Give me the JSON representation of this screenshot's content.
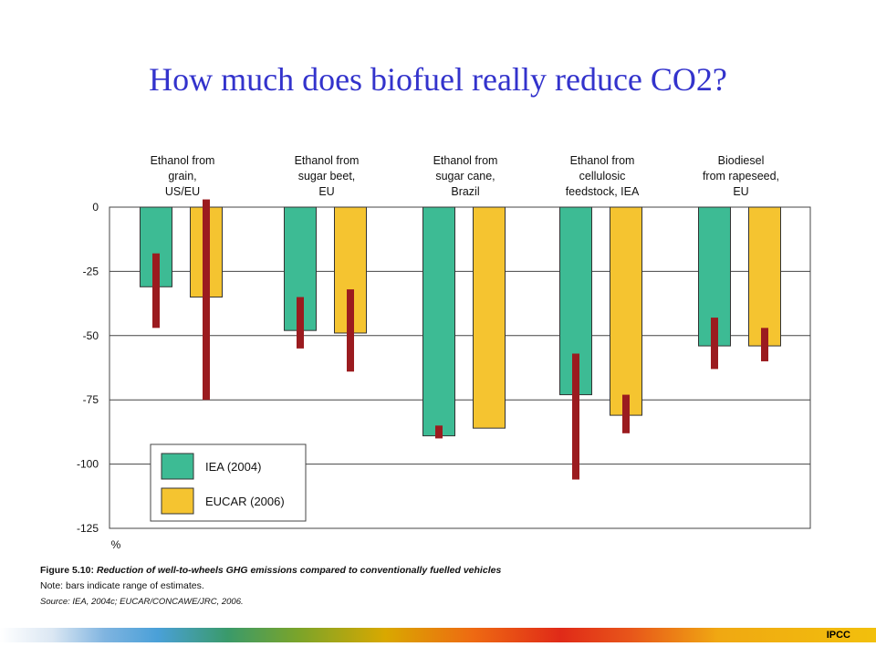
{
  "title": "How much does biofuel really reduce CO2?",
  "chart_data": {
    "type": "bar",
    "categories": [
      "Ethanol from grain, US/EU",
      "Ethanol from sugar beet, EU",
      "Ethanol from sugar cane, Brazil",
      "Ethanol from cellulosic feedstock, IEA",
      "Biodiesel from rapeseed, EU"
    ],
    "category_lines": [
      [
        "Ethanol from",
        "grain,",
        "US/EU"
      ],
      [
        "Ethanol from",
        "sugar beet,",
        "EU"
      ],
      [
        "Ethanol from",
        "sugar cane,",
        "Brazil"
      ],
      [
        "Ethanol from",
        "cellulosic",
        "feedstock, IEA"
      ],
      [
        "Biodiesel",
        "from rapeseed,",
        "EU"
      ]
    ],
    "series": [
      {
        "name": "IEA (2004)",
        "color": "#3dbb94",
        "values": [
          -31,
          -48,
          -89,
          -73,
          -54
        ],
        "ranges": [
          [
            -18,
            -47
          ],
          [
            -35,
            -55
          ],
          [
            -85,
            -90
          ],
          [
            -57,
            -106
          ],
          [
            -43,
            -63
          ]
        ]
      },
      {
        "name": "EUCAR (2006)",
        "color": "#f5c430",
        "values": [
          -35,
          -49,
          -86,
          -81,
          -54
        ],
        "ranges": [
          [
            3,
            -75
          ],
          [
            -32,
            -64
          ],
          null,
          [
            -73,
            -88
          ],
          [
            -47,
            -60
          ]
        ]
      }
    ],
    "range_color": "#9b1b1f",
    "ylim": [
      -125,
      0
    ],
    "yticks": [
      0,
      -25,
      -50,
      -75,
      -100,
      -125
    ],
    "ylabel": "%",
    "grid": true,
    "legend": "bottom-left"
  },
  "caption": {
    "figure_label": "Figure 5.10:",
    "figure_text": "Reduction of well-to-wheels GHG emissions compared to conventionally fuelled vehicles",
    "note": "Note: bars indicate range of estimates.",
    "source": "Source: IEA, 2004c; EUCAR/CONCAWE/JRC, 2006."
  },
  "footer": {
    "label": "IPCC"
  }
}
